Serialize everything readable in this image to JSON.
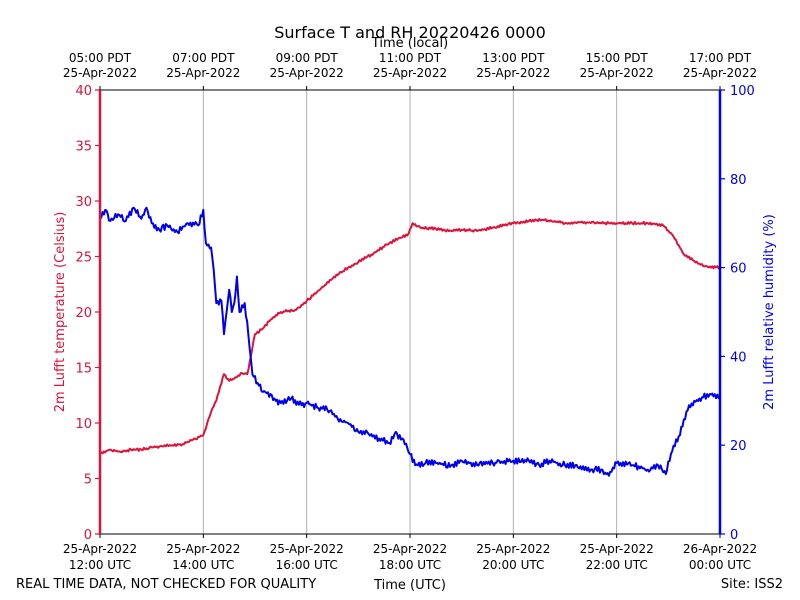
{
  "chart_data": {
    "type": "line",
    "title": "Surface T and RH 20220426 0000",
    "top_axis_label": "Time (local)",
    "xlabel": "Time (UTC)",
    "ylabel_left": "2m Lufft temperature (Celsius)",
    "ylabel_right": "2m Lufft relative humidity (%)",
    "ylim_left": [
      0,
      40
    ],
    "ylim_right": [
      0,
      100
    ],
    "xlim_hours_utc": [
      12,
      24
    ],
    "left_ticks": [
      "0",
      "5",
      "10",
      "15",
      "20",
      "25",
      "30",
      "35",
      "40"
    ],
    "right_ticks": [
      "0",
      "20",
      "40",
      "60",
      "80",
      "100"
    ],
    "bottom_ticks": [
      {
        "hour": 12,
        "line1": "25-Apr-2022",
        "line2": "12:00 UTC"
      },
      {
        "hour": 14,
        "line1": "25-Apr-2022",
        "line2": "14:00 UTC"
      },
      {
        "hour": 16,
        "line1": "25-Apr-2022",
        "line2": "16:00 UTC"
      },
      {
        "hour": 18,
        "line1": "25-Apr-2022",
        "line2": "18:00 UTC"
      },
      {
        "hour": 20,
        "line1": "25-Apr-2022",
        "line2": "20:00 UTC"
      },
      {
        "hour": 22,
        "line1": "25-Apr-2022",
        "line2": "22:00 UTC"
      },
      {
        "hour": 24,
        "line1": "26-Apr-2022",
        "line2": "00:00 UTC"
      }
    ],
    "top_ticks": [
      {
        "hour": 12,
        "line1": "05:00 PDT",
        "line2": "25-Apr-2022"
      },
      {
        "hour": 14,
        "line1": "07:00 PDT",
        "line2": "25-Apr-2022"
      },
      {
        "hour": 16,
        "line1": "09:00 PDT",
        "line2": "25-Apr-2022"
      },
      {
        "hour": 18,
        "line1": "11:00 PDT",
        "line2": "25-Apr-2022"
      },
      {
        "hour": 20,
        "line1": "13:00 PDT",
        "line2": "25-Apr-2022"
      },
      {
        "hour": 22,
        "line1": "15:00 PDT",
        "line2": "25-Apr-2022"
      },
      {
        "hour": 24,
        "line1": "17:00 PDT",
        "line2": "25-Apr-2022"
      }
    ],
    "grid": "vertical",
    "series": [
      {
        "name": "2m Lufft temperature",
        "axis": "left",
        "color": "#dc143c",
        "points": [
          [
            12.0,
            7.3
          ],
          [
            12.2,
            7.6
          ],
          [
            12.4,
            7.4
          ],
          [
            12.6,
            7.6
          ],
          [
            12.8,
            7.6
          ],
          [
            13.0,
            7.8
          ],
          [
            13.2,
            7.9
          ],
          [
            13.4,
            8.0
          ],
          [
            13.6,
            8.1
          ],
          [
            13.8,
            8.5
          ],
          [
            14.0,
            8.9
          ],
          [
            14.15,
            11.0
          ],
          [
            14.25,
            12.0
          ],
          [
            14.4,
            14.4
          ],
          [
            14.5,
            13.8
          ],
          [
            14.6,
            14.0
          ],
          [
            14.75,
            14.5
          ],
          [
            14.85,
            14.4
          ],
          [
            14.92,
            16.0
          ],
          [
            15.0,
            18.0
          ],
          [
            15.15,
            18.5
          ],
          [
            15.3,
            19.3
          ],
          [
            15.5,
            20.0
          ],
          [
            15.8,
            20.2
          ],
          [
            16.0,
            21.0
          ],
          [
            16.2,
            21.8
          ],
          [
            16.5,
            23.0
          ],
          [
            16.8,
            24.0
          ],
          [
            17.0,
            24.5
          ],
          [
            17.3,
            25.3
          ],
          [
            17.6,
            26.2
          ],
          [
            17.8,
            26.7
          ],
          [
            17.95,
            26.9
          ],
          [
            18.05,
            28.0
          ],
          [
            18.2,
            27.6
          ],
          [
            18.5,
            27.5
          ],
          [
            18.8,
            27.3
          ],
          [
            19.0,
            27.4
          ],
          [
            19.3,
            27.3
          ],
          [
            19.6,
            27.6
          ],
          [
            20.0,
            28.0
          ],
          [
            20.3,
            28.2
          ],
          [
            20.6,
            28.3
          ],
          [
            21.0,
            28.0
          ],
          [
            21.3,
            28.1
          ],
          [
            21.6,
            28.0
          ],
          [
            22.0,
            28.0
          ],
          [
            22.3,
            28.0
          ],
          [
            22.6,
            28.0
          ],
          [
            22.9,
            27.8
          ],
          [
            23.1,
            26.8
          ],
          [
            23.3,
            25.2
          ],
          [
            23.5,
            24.6
          ],
          [
            23.7,
            24.1
          ],
          [
            24.0,
            24.0
          ]
        ]
      },
      {
        "name": "2m Lufft relative humidity",
        "axis": "right",
        "color": "#0000ee",
        "points": [
          [
            12.0,
            71.0
          ],
          [
            12.1,
            73.0
          ],
          [
            12.2,
            70.5
          ],
          [
            12.35,
            72.0
          ],
          [
            12.5,
            70.5
          ],
          [
            12.65,
            73.5
          ],
          [
            12.8,
            71.0
          ],
          [
            12.9,
            73.5
          ],
          [
            13.0,
            70.0
          ],
          [
            13.15,
            68.5
          ],
          [
            13.3,
            69.5
          ],
          [
            13.5,
            68.0
          ],
          [
            13.7,
            70.0
          ],
          [
            13.9,
            69.5
          ],
          [
            14.0,
            73.0
          ],
          [
            14.05,
            65.5
          ],
          [
            14.15,
            64.5
          ],
          [
            14.2,
            59.5
          ],
          [
            14.25,
            52.0
          ],
          [
            14.35,
            52.5
          ],
          [
            14.4,
            45.0
          ],
          [
            14.45,
            50.0
          ],
          [
            14.5,
            55.0
          ],
          [
            14.55,
            50.0
          ],
          [
            14.6,
            52.0
          ],
          [
            14.65,
            58.0
          ],
          [
            14.7,
            50.0
          ],
          [
            14.8,
            52.0
          ],
          [
            14.87,
            45.0
          ],
          [
            14.95,
            36.0
          ],
          [
            15.05,
            34.0
          ],
          [
            15.15,
            32.0
          ],
          [
            15.3,
            31.5
          ],
          [
            15.4,
            30.0
          ],
          [
            15.5,
            29.5
          ],
          [
            15.7,
            30.5
          ],
          [
            15.9,
            29.0
          ],
          [
            16.0,
            29.5
          ],
          [
            16.2,
            28.5
          ],
          [
            16.4,
            28.0
          ],
          [
            16.6,
            26.0
          ],
          [
            16.8,
            25.0
          ],
          [
            17.0,
            23.0
          ],
          [
            17.2,
            22.5
          ],
          [
            17.4,
            21.5
          ],
          [
            17.6,
            20.5
          ],
          [
            17.7,
            22.5
          ],
          [
            17.85,
            21.5
          ],
          [
            18.0,
            18.0
          ],
          [
            18.1,
            15.5
          ],
          [
            18.3,
            16.0
          ],
          [
            18.5,
            16.0
          ],
          [
            18.8,
            15.5
          ],
          [
            19.0,
            16.5
          ],
          [
            19.3,
            15.5
          ],
          [
            19.6,
            16.0
          ],
          [
            20.0,
            16.5
          ],
          [
            20.3,
            16.5
          ],
          [
            20.5,
            15.5
          ],
          [
            20.7,
            16.5
          ],
          [
            21.0,
            15.5
          ],
          [
            21.2,
            15.5
          ],
          [
            21.5,
            14.5
          ],
          [
            21.7,
            14.5
          ],
          [
            21.8,
            13.5
          ],
          [
            21.9,
            14.0
          ],
          [
            22.0,
            16.0
          ],
          [
            22.3,
            15.5
          ],
          [
            22.6,
            14.5
          ],
          [
            22.8,
            15.5
          ],
          [
            22.95,
            13.5
          ],
          [
            23.05,
            18.0
          ],
          [
            23.2,
            22.0
          ],
          [
            23.4,
            29.0
          ],
          [
            23.6,
            30.5
          ],
          [
            23.8,
            31.5
          ],
          [
            24.0,
            31.0
          ]
        ]
      }
    ]
  },
  "footer": {
    "disclaimer": "REAL TIME DATA, NOT CHECKED FOR QUALITY",
    "site": "Site: ISS2"
  }
}
